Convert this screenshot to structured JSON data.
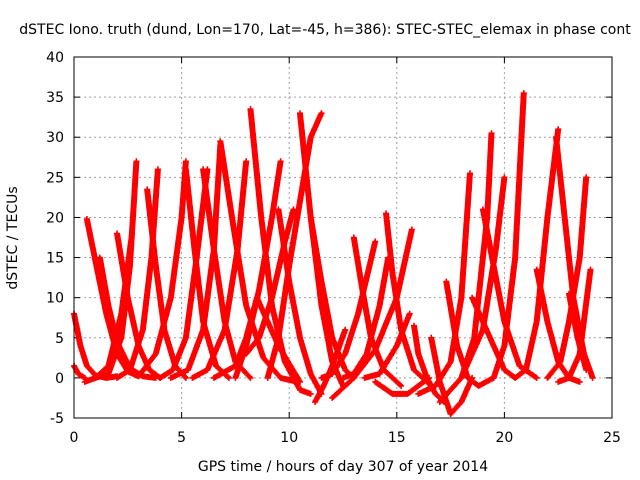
{
  "chart_data": {
    "type": "scatter",
    "title": "dSTEC Iono. truth (dund, Lon=170, Lat=-45, h=386): STEC-STEC_elemax in phase cont",
    "xlabel": "GPS time / hours of day 307 of year 2014",
    "ylabel": "dSTEC  / TECUs",
    "xlim": [
      0,
      25
    ],
    "ylim": [
      -5,
      40
    ],
    "xticks": [
      0,
      5,
      10,
      15,
      20,
      25
    ],
    "yticks": [
      -5,
      0,
      5,
      10,
      15,
      20,
      25,
      30,
      35,
      40
    ],
    "grid": true,
    "marker": "plus",
    "color": "#ff0000",
    "series": [
      {
        "x": [
          0.0,
          0.3,
          0.6,
          1.0,
          1.5,
          2.0
        ],
        "y": [
          8.0,
          4.0,
          1.5,
          0.3,
          0.0,
          0.2
        ]
      },
      {
        "x": [
          0.0,
          0.2,
          0.5
        ],
        "y": [
          1.5,
          0.5,
          0.0
        ]
      },
      {
        "x": [
          0.6,
          1.0,
          1.5,
          2.0,
          2.5,
          3.0
        ],
        "y": [
          19.8,
          14.5,
          8.0,
          3.0,
          0.8,
          0.2
        ]
      },
      {
        "x": [
          0.5,
          1.0,
          1.6,
          2.2,
          2.7
        ],
        "y": [
          -0.5,
          0.0,
          1.5,
          8.0,
          18.0
        ]
      },
      {
        "x": [
          1.2,
          1.6,
          2.0,
          2.6,
          3.2,
          3.8
        ],
        "y": [
          15.0,
          9.0,
          4.5,
          1.2,
          0.2,
          0.0
        ]
      },
      {
        "x": [
          1.0,
          1.6,
          2.2,
          2.6,
          2.9
        ],
        "y": [
          0.0,
          0.5,
          5.0,
          14.0,
          27.0
        ]
      },
      {
        "x": [
          2.0,
          2.5,
          3.0,
          3.5,
          4.0
        ],
        "y": [
          18.0,
          10.0,
          4.0,
          1.0,
          0.0
        ]
      },
      {
        "x": [
          2.0,
          2.6,
          3.2,
          3.6,
          3.9
        ],
        "y": [
          0.0,
          1.0,
          6.0,
          15.0,
          26.0
        ]
      },
      {
        "x": [
          3.4,
          3.8,
          4.2,
          4.7,
          5.2
        ],
        "y": [
          23.5,
          14.0,
          6.0,
          1.5,
          0.0
        ]
      },
      {
        "x": [
          3.0,
          3.8,
          4.5,
          5.0,
          5.2
        ],
        "y": [
          0.2,
          3.0,
          10.0,
          20.0,
          27.0
        ]
      },
      {
        "x": [
          4.0,
          4.6,
          5.2,
          5.7,
          6.2
        ],
        "y": [
          0.0,
          1.0,
          5.0,
          15.0,
          26.0
        ]
      },
      {
        "x": [
          5.2,
          5.6,
          6.0,
          6.6,
          7.2
        ],
        "y": [
          26.0,
          16.0,
          7.0,
          1.5,
          0.0
        ]
      },
      {
        "x": [
          4.5,
          5.3,
          6.0,
          6.5,
          6.8
        ],
        "y": [
          0.0,
          1.0,
          6.0,
          16.0,
          29.0
        ]
      },
      {
        "x": [
          6.0,
          6.5,
          7.0,
          7.5,
          8.2
        ],
        "y": [
          26.0,
          16.0,
          7.0,
          2.0,
          0.0
        ]
      },
      {
        "x": [
          5.5,
          6.2,
          7.0,
          7.6,
          8.0
        ],
        "y": [
          0.0,
          1.0,
          6.0,
          16.0,
          27.0
        ]
      },
      {
        "x": [
          6.5,
          7.5,
          8.0,
          8.5,
          9.5,
          10.5
        ],
        "y": [
          0.0,
          1.5,
          5.0,
          10.0,
          4.0,
          -0.5
        ]
      },
      {
        "x": [
          6.8,
          7.4,
          8.0,
          8.8,
          9.6,
          10.4
        ],
        "y": [
          29.5,
          19.0,
          9.0,
          2.5,
          0.0,
          -0.5
        ]
      },
      {
        "x": [
          8.2,
          8.7,
          9.2,
          9.8,
          10.5,
          11.0
        ],
        "y": [
          33.5,
          20.0,
          9.0,
          2.0,
          -1.5,
          -2.0
        ]
      },
      {
        "x": [
          7.5,
          8.0,
          8.6,
          9.2,
          9.6
        ],
        "y": [
          0.0,
          4.0,
          11.0,
          20.0,
          27.0
        ]
      },
      {
        "x": [
          8.0,
          8.6,
          9.2,
          9.8,
          10.2
        ],
        "y": [
          3.0,
          5.0,
          10.0,
          17.0,
          21.0
        ]
      },
      {
        "x": [
          9.0,
          9.5,
          10.0,
          10.5,
          11.0,
          11.5
        ],
        "y": [
          0.0,
          5.0,
          14.0,
          22.0,
          30.0,
          33.0
        ]
      },
      {
        "x": [
          9.5,
          10.0,
          10.5,
          11.0,
          11.5
        ],
        "y": [
          21.0,
          12.0,
          5.0,
          0.5,
          -2.0
        ]
      },
      {
        "x": [
          10.5,
          11.0,
          11.5,
          12.0,
          12.5
        ],
        "y": [
          33.0,
          20.0,
          9.0,
          2.0,
          -1.0
        ]
      },
      {
        "x": [
          11.0,
          11.5,
          12.0,
          12.6,
          13.0
        ],
        "y": [
          20.0,
          12.0,
          5.0,
          1.0,
          0.0
        ]
      },
      {
        "x": [
          11.2,
          11.6,
          12.0,
          12.6
        ],
        "y": [
          -3.0,
          -1.0,
          1.5,
          6.0
        ]
      },
      {
        "x": [
          11.5,
          12.0,
          12.6,
          13.2,
          14.0
        ],
        "y": [
          0.0,
          0.5,
          3.0,
          8.0,
          17.0
        ]
      },
      {
        "x": [
          13.0,
          13.4,
          13.8,
          14.4,
          15.2
        ],
        "y": [
          17.5,
          11.0,
          5.0,
          1.0,
          -1.0
        ]
      },
      {
        "x": [
          12.5,
          13.0,
          13.6,
          14.2,
          14.6
        ],
        "y": [
          0.0,
          0.5,
          3.0,
          9.0,
          15.0
        ]
      },
      {
        "x": [
          14.5,
          14.8,
          15.2,
          15.8,
          16.6
        ],
        "y": [
          20.5,
          13.0,
          6.0,
          1.0,
          -1.0
        ]
      },
      {
        "x": [
          12.0,
          13.0,
          14.0,
          15.0,
          15.7
        ],
        "y": [
          -2.5,
          0.0,
          3.5,
          10.0,
          18.5
        ]
      },
      {
        "x": [
          13.5,
          14.2,
          15.0,
          15.6
        ],
        "y": [
          0.0,
          0.5,
          4.0,
          8.0
        ]
      },
      {
        "x": [
          14.0,
          14.8,
          15.5,
          16.0,
          16.5
        ],
        "y": [
          -0.5,
          -2.0,
          -2.0,
          -1.0,
          0.0
        ]
      },
      {
        "x": [
          15.8,
          16.0,
          16.4,
          16.8,
          17.2
        ],
        "y": [
          6.5,
          3.0,
          0.0,
          -2.0,
          -3.0
        ]
      },
      {
        "x": [
          16.6,
          17.0,
          17.5,
          18.0,
          18.5
        ],
        "y": [
          5.0,
          -0.5,
          -4.5,
          -3.0,
          0.0
        ]
      },
      {
        "x": [
          17.3,
          17.8,
          18.3,
          18.8,
          19.5
        ],
        "y": [
          12.0,
          4.0,
          0.0,
          -1.0,
          0.0
        ]
      },
      {
        "x": [
          16.0,
          16.8,
          17.5,
          18.0,
          18.4
        ],
        "y": [
          -2.0,
          -1.0,
          2.0,
          10.0,
          25.5
        ]
      },
      {
        "x": [
          17.0,
          18.0,
          19.0,
          19.6,
          20.0
        ],
        "y": [
          -3.0,
          0.0,
          6.0,
          16.0,
          25.0
        ]
      },
      {
        "x": [
          18.5,
          19.0,
          19.5,
          20.0,
          20.5
        ],
        "y": [
          10.0,
          7.0,
          4.0,
          1.0,
          0.0
        ]
      },
      {
        "x": [
          18.0,
          18.6,
          19.2,
          19.4
        ],
        "y": [
          0.0,
          5.0,
          20.0,
          30.5
        ]
      },
      {
        "x": [
          19.0,
          19.5,
          20.0,
          20.7,
          21.5
        ],
        "y": [
          21.0,
          14.0,
          7.0,
          1.5,
          0.0
        ]
      },
      {
        "x": [
          19.5,
          20.0,
          20.5,
          20.9
        ],
        "y": [
          0.0,
          4.0,
          15.0,
          35.5
        ]
      },
      {
        "x": [
          20.5,
          21.0,
          21.5,
          22.0,
          22.5
        ],
        "y": [
          0.0,
          1.0,
          7.0,
          20.0,
          31.0
        ]
      },
      {
        "x": [
          21.5,
          22.0,
          22.5,
          23.0,
          23.5
        ],
        "y": [
          13.5,
          7.0,
          2.0,
          0.0,
          -0.5
        ]
      },
      {
        "x": [
          22.4,
          22.8,
          23.2,
          23.7,
          24.1
        ],
        "y": [
          30.0,
          20.0,
          10.0,
          3.0,
          0.0
        ]
      },
      {
        "x": [
          22.0,
          22.6,
          23.0,
          23.5,
          23.8
        ],
        "y": [
          0.0,
          2.0,
          7.0,
          15.0,
          25.0
        ]
      },
      {
        "x": [
          22.5,
          23.0,
          23.5,
          24.0
        ],
        "y": [
          -0.5,
          0.0,
          3.0,
          13.5
        ]
      },
      {
        "x": [
          23.0,
          23.4,
          23.8
        ],
        "y": [
          10.5,
          5.0,
          1.0
        ]
      }
    ]
  }
}
